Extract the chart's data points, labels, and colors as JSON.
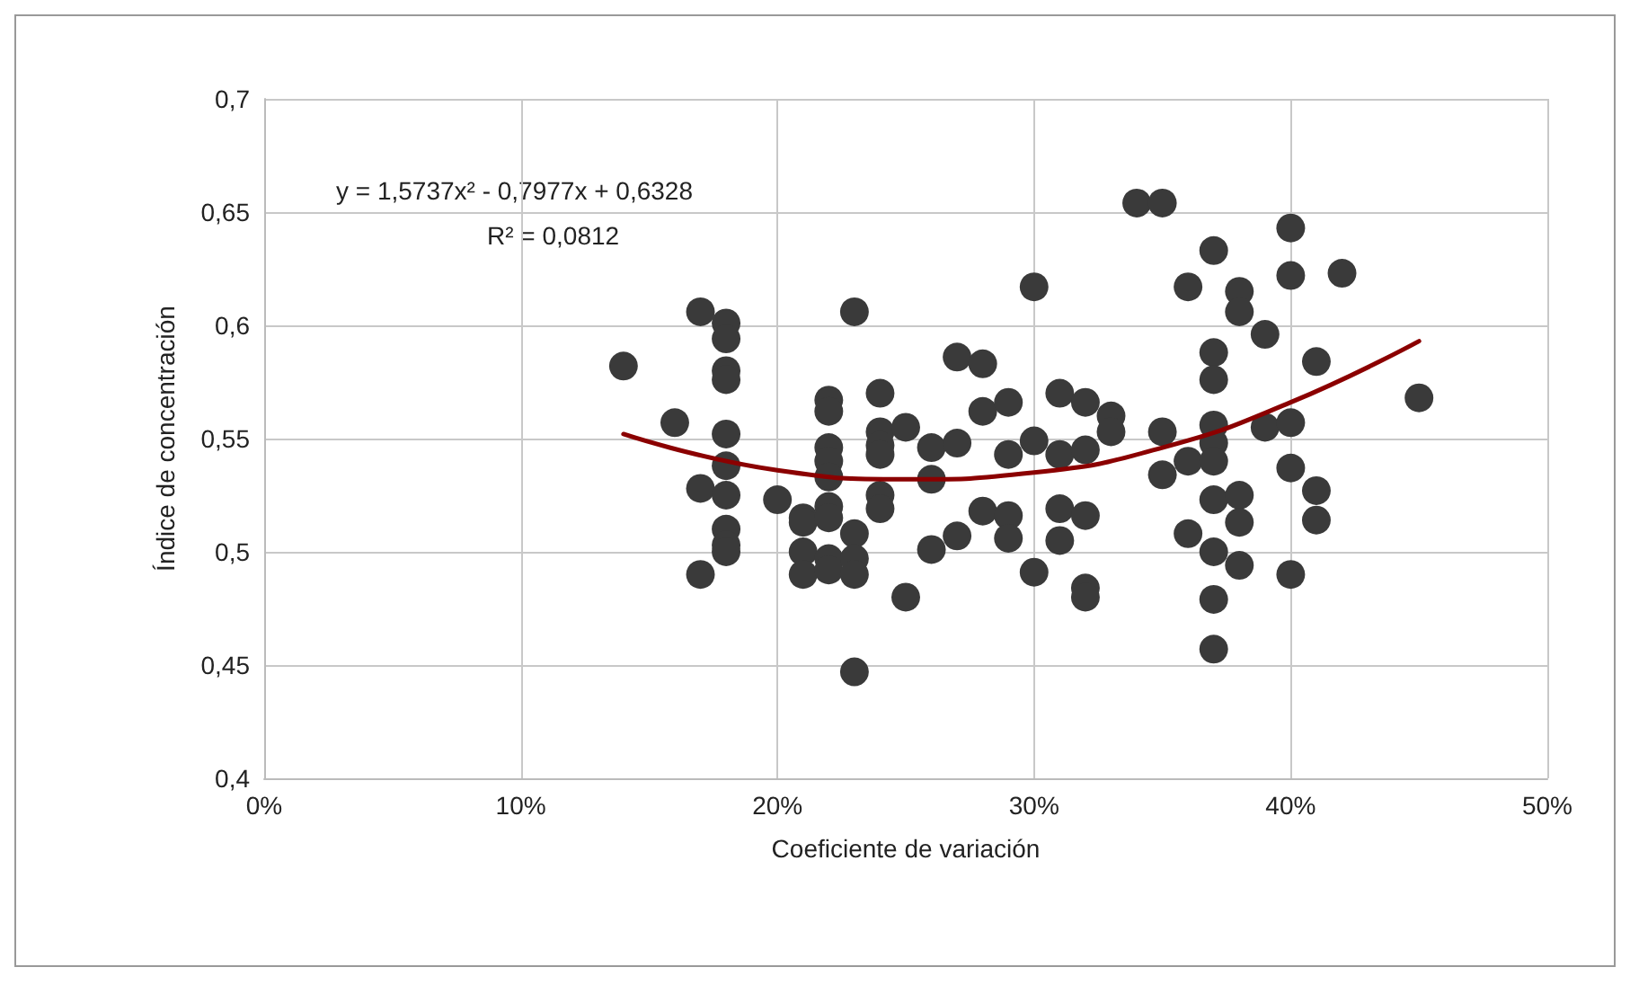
{
  "chart_data": {
    "type": "scatter",
    "xlabel": "Coeficiente de variación",
    "ylabel": "Índice de concentración",
    "annotations": [
      "y = 1,5737x² - 0,7977x + 0,6328",
      "R² = 0,0812"
    ],
    "xlim": [
      0,
      50
    ],
    "xticks": [
      {
        "value": 0,
        "label": "0%"
      },
      {
        "value": 10,
        "label": "10%"
      },
      {
        "value": 20,
        "label": "20%"
      },
      {
        "value": 30,
        "label": "30%"
      },
      {
        "value": 40,
        "label": "40%"
      },
      {
        "value": 50,
        "label": "50%"
      }
    ],
    "ylim": [
      0.4,
      0.7
    ],
    "yticks": [
      {
        "value": 0.4,
        "label": "0,4"
      },
      {
        "value": 0.45,
        "label": "0,45"
      },
      {
        "value": 0.5,
        "label": "0,5"
      },
      {
        "value": 0.55,
        "label": "0,55"
      },
      {
        "value": 0.6,
        "label": "0,6"
      },
      {
        "value": 0.65,
        "label": "0,65"
      },
      {
        "value": 0.7,
        "label": "0,7"
      }
    ],
    "grid": true,
    "marker": "circle",
    "series": [
      {
        "color": "#3a3a3a",
        "x": [
          14,
          16,
          17,
          17,
          17,
          18,
          18,
          18,
          18,
          18,
          18,
          18,
          18,
          18,
          18,
          20,
          21,
          21,
          21,
          21,
          22,
          22,
          22,
          22,
          22,
          22,
          22,
          22,
          22,
          23,
          23,
          23,
          23,
          23,
          24,
          24,
          24,
          24,
          24,
          24,
          25,
          25,
          26,
          26,
          26,
          27,
          27,
          27,
          28,
          28,
          28,
          29,
          29,
          29,
          29,
          30,
          30,
          30,
          31,
          31,
          31,
          31,
          32,
          32,
          32,
          32,
          32,
          33,
          33,
          34,
          35,
          35,
          35,
          36,
          36,
          36,
          37,
          37,
          37,
          37,
          37,
          37,
          37,
          37,
          37,
          37,
          38,
          38,
          38,
          38,
          38,
          39,
          39,
          40,
          40,
          40,
          40,
          40,
          41,
          41,
          41,
          42,
          45
        ],
        "values": [
          0.582,
          0.557,
          0.606,
          0.528,
          0.49,
          0.601,
          0.594,
          0.58,
          0.576,
          0.552,
          0.538,
          0.525,
          0.51,
          0.503,
          0.5,
          0.523,
          0.515,
          0.5,
          0.49,
          0.513,
          0.567,
          0.562,
          0.546,
          0.54,
          0.533,
          0.52,
          0.515,
          0.497,
          0.492,
          0.606,
          0.508,
          0.497,
          0.49,
          0.447,
          0.57,
          0.553,
          0.547,
          0.543,
          0.525,
          0.519,
          0.555,
          0.48,
          0.546,
          0.532,
          0.501,
          0.586,
          0.548,
          0.507,
          0.583,
          0.562,
          0.518,
          0.566,
          0.543,
          0.516,
          0.506,
          0.617,
          0.549,
          0.491,
          0.57,
          0.543,
          0.519,
          0.505,
          0.566,
          0.545,
          0.516,
          0.484,
          0.48,
          0.56,
          0.553,
          0.654,
          0.654,
          0.553,
          0.534,
          0.617,
          0.54,
          0.508,
          0.633,
          0.588,
          0.576,
          0.556,
          0.548,
          0.54,
          0.523,
          0.5,
          0.479,
          0.457,
          0.615,
          0.606,
          0.525,
          0.513,
          0.494,
          0.596,
          0.555,
          0.643,
          0.622,
          0.557,
          0.537,
          0.49,
          0.584,
          0.527,
          0.514,
          0.623,
          0.568
        ]
      },
      {
        "type": "line",
        "color": "#8b0000",
        "marker": "none",
        "x": [
          14,
          20,
          25,
          30,
          35,
          40,
          45
        ],
        "values": [
          0.552,
          0.536,
          0.532,
          0.535,
          0.546,
          0.566,
          0.593
        ]
      }
    ]
  }
}
